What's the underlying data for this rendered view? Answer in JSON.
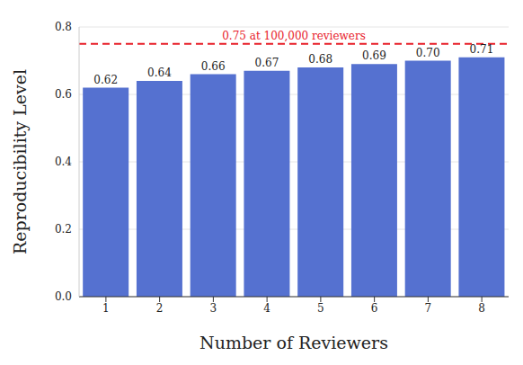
{
  "chart_data": {
    "type": "bar",
    "x_label": "Number of Reviewers",
    "y_label": "Reproducibility Level",
    "categories": [
      "1",
      "2",
      "3",
      "4",
      "5",
      "6",
      "7",
      "8"
    ],
    "values": [
      0.62,
      0.64,
      0.66,
      0.67,
      0.68,
      0.69,
      0.7,
      0.71
    ],
    "value_labels": [
      "0.62",
      "0.64",
      "0.66",
      "0.67",
      "0.68",
      "0.69",
      "0.70",
      "0.71"
    ],
    "color": "#5571d0",
    "ylim": [
      0,
      0.8
    ],
    "yticks": [
      {
        "value": 0,
        "label": "0.0"
      },
      0.2,
      0.4,
      0.6,
      0.8
    ],
    "grid": true,
    "data_labels": true,
    "annotations": [
      {
        "value": 0.75,
        "label": "0.75 at 100,000 reviewers",
        "color": "#e8202a",
        "line_style": "dashed"
      }
    ]
  }
}
